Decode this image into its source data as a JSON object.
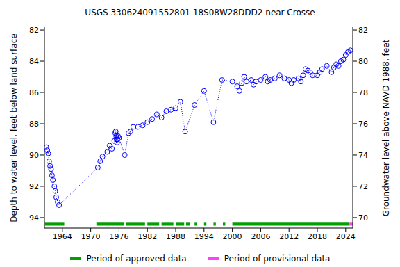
{
  "chart_data": {
    "type": "scatter",
    "title": "USGS 330624091552801 18S08W28DDD2 near Crosse",
    "y_label": "Depth to water level, feet below land surface",
    "y2_label": "Groundwater level above NAVD 1988, feet",
    "xlim": [
      1960.2,
      2025.5
    ],
    "xticks": [
      1964,
      1970,
      1976,
      1982,
      1988,
      1994,
      2000,
      2006,
      2012,
      2018,
      2024
    ],
    "ylim": [
      94.67,
      81.82
    ],
    "yticks": [
      82,
      84,
      86,
      88,
      90,
      92,
      94
    ],
    "y2lim": [
      69.33,
      82.18
    ],
    "y2ticks": [
      70,
      72,
      74,
      76,
      78,
      80,
      82
    ],
    "grid": false,
    "x": [
      1960.6,
      1960.8,
      1961.0,
      1961.2,
      1961.4,
      1961.6,
      1961.8,
      1962.0,
      1962.3,
      1962.5,
      1962.7,
      1963.0,
      1963.3,
      1971.5,
      1972.0,
      1972.5,
      1973.5,
      1974.0,
      1974.5,
      1975.0,
      1975.2,
      1975.3,
      1975.4,
      1975.5,
      1975.6,
      1975.7,
      1975.8,
      1976.0,
      1977.2,
      1978.0,
      1978.4,
      1979.0,
      1980.0,
      1981.0,
      1982.0,
      1983.0,
      1984.0,
      1985.0,
      1986.0,
      1987.0,
      1988.0,
      1989.0,
      1990.0,
      1992.0,
      1994.0,
      1996.0,
      1997.8,
      2000.0,
      2001.0,
      2001.5,
      2002.0,
      2002.5,
      2003.0,
      2004.0,
      2004.5,
      2005.0,
      2006.0,
      2007.0,
      2007.5,
      2008.0,
      2009.0,
      2010.0,
      2011.0,
      2012.0,
      2012.5,
      2013.0,
      2014.0,
      2014.5,
      2015.0,
      2015.5,
      2016.0,
      2016.5,
      2017.0,
      2018.0,
      2018.5,
      2019.0,
      2020.0,
      2021.0,
      2021.5,
      2022.0,
      2022.5,
      2023.0,
      2023.5,
      2024.0,
      2024.5,
      2025.0
    ],
    "series": [
      {
        "color": "#0000ff",
        "marker": "circle",
        "line_style": "dotted",
        "values": [
          89.5,
          89.7,
          89.9,
          90.4,
          90.7,
          90.9,
          91.3,
          91.6,
          92.0,
          92.3,
          92.7,
          93.0,
          93.2,
          90.8,
          90.4,
          90.1,
          89.8,
          89.4,
          89.6,
          89.1,
          88.6,
          88.5,
          88.8,
          89.0,
          89.2,
          89.0,
          88.8,
          88.9,
          90.0,
          88.6,
          88.5,
          88.2,
          88.2,
          88.1,
          87.9,
          87.7,
          87.4,
          87.6,
          87.2,
          87.1,
          87.0,
          86.6,
          88.5,
          86.8,
          85.9,
          87.9,
          85.2,
          85.3,
          85.6,
          85.9,
          85.4,
          85.0,
          85.3,
          85.2,
          85.5,
          85.3,
          85.2,
          85.0,
          85.3,
          85.2,
          85.1,
          84.9,
          85.1,
          85.2,
          85.4,
          85.2,
          85.1,
          85.3,
          84.9,
          84.5,
          84.6,
          84.7,
          84.9,
          84.9,
          84.7,
          84.5,
          84.3,
          84.7,
          84.4,
          84.2,
          84.3,
          84.0,
          83.9,
          83.6,
          83.4,
          83.3
        ]
      }
    ],
    "periods": [
      {
        "name": "Period of approved data",
        "color": "#00a000",
        "ranges": [
          [
            1960.3,
            1964.4
          ],
          [
            1971.2,
            1977.0
          ],
          [
            1977.5,
            1981.5
          ],
          [
            1982.0,
            1984.5
          ],
          [
            1985.0,
            1987.5
          ],
          [
            1988.0,
            1989.8
          ],
          [
            1990.2,
            1991.0
          ],
          [
            1992.0,
            1992.5
          ],
          [
            1994.0,
            1994.5
          ],
          [
            1996.0,
            1996.5
          ],
          [
            1998.0,
            1998.5
          ],
          [
            2000.0,
            2024.8
          ]
        ]
      },
      {
        "name": "Period of provisional data",
        "color": "#ff40ff",
        "ranges": [
          [
            2024.8,
            2025.5
          ]
        ]
      }
    ]
  }
}
